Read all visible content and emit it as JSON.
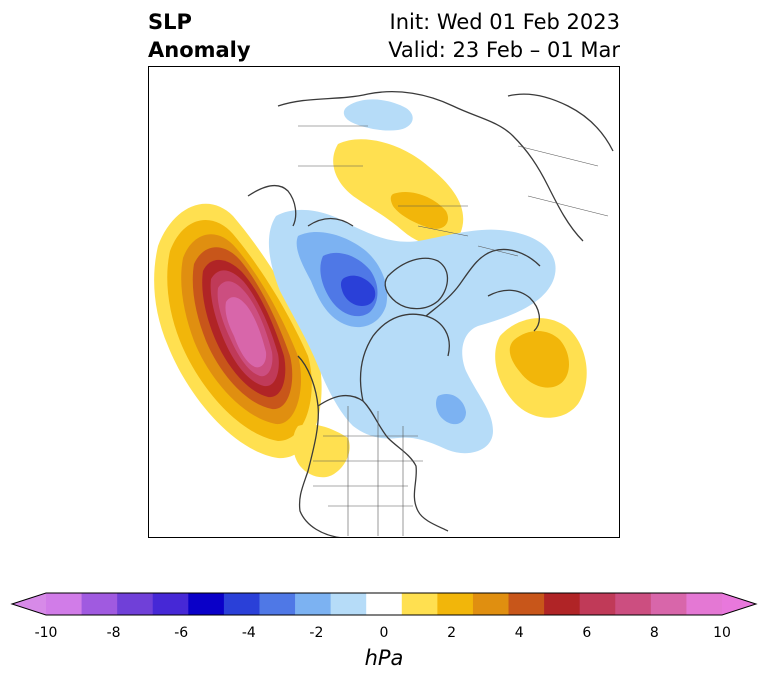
{
  "title": {
    "left_line1": "SLP",
    "left_line2": "Anomaly",
    "right_line1": "Init: Wed 01 Feb 2023",
    "right_line2": "Valid: 23 Feb – 01 Mar"
  },
  "map": {
    "projection": "polar-stereographic-north",
    "field": "sea-level-pressure-anomaly",
    "features": [
      {
        "name": "north-pacific-high-anomaly",
        "sign": "positive",
        "peak_hpa": 8
      },
      {
        "name": "greenland-low-anomaly",
        "sign": "negative",
        "peak_hpa": -5
      },
      {
        "name": "siberia-high-anomaly",
        "sign": "positive",
        "peak_hpa": 2
      },
      {
        "name": "north-atlantic-high-anomaly",
        "sign": "positive",
        "peak_hpa": 3
      },
      {
        "name": "eurasia-low-anomaly",
        "sign": "negative",
        "peak_hpa": -2
      },
      {
        "name": "eastern-canada-low-anomaly",
        "sign": "negative",
        "peak_hpa": -2
      }
    ]
  },
  "colorbar": {
    "unit": "hPa",
    "extend": "both",
    "levels": [
      -10,
      -9,
      -8,
      -7,
      -6,
      -5,
      -4,
      -3,
      -2,
      -1,
      1,
      2,
      3,
      4,
      5,
      6,
      7,
      8,
      9,
      10
    ],
    "colors": [
      "#d17ce8",
      "#a05ae0",
      "#7040d8",
      "#4628d6",
      "#0a00c8",
      "#2a40d8",
      "#4f78e6",
      "#7cb2f2",
      "#b6dcf8",
      "#ffffff",
      "#ffe050",
      "#f2b60a",
      "#e08f10",
      "#c8561a",
      "#b02426",
      "#c03a58",
      "#cc4e80",
      "#d866aa",
      "#e478d4"
    ],
    "under_color": "#d78ae8",
    "over_color": "#e878dc",
    "tick_labels": [
      "-10",
      "-8",
      "-6",
      "-4",
      "-2",
      "0",
      "2",
      "4",
      "6",
      "8",
      "10"
    ]
  }
}
